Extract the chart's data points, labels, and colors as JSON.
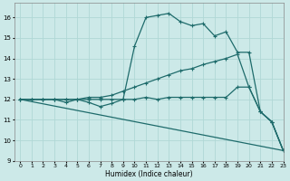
{
  "bg_color": "#cce9e8",
  "line_color": "#1e6b6b",
  "grid_color": "#b0d8d6",
  "xlabel": "Humidex (Indice chaleur)",
  "xlim": [
    -0.5,
    23
  ],
  "ylim": [
    9,
    16.7
  ],
  "yticks": [
    9,
    10,
    11,
    12,
    13,
    14,
    15,
    16
  ],
  "xticks": [
    0,
    1,
    2,
    3,
    4,
    5,
    6,
    7,
    8,
    9,
    10,
    11,
    12,
    13,
    14,
    15,
    16,
    17,
    18,
    19,
    20,
    21,
    22,
    23
  ],
  "line1_upper": {
    "x": [
      0,
      1,
      2,
      3,
      4,
      5,
      6,
      7,
      8,
      9,
      10,
      11,
      12,
      13,
      14,
      15,
      16,
      17,
      18,
      19,
      20,
      21,
      22,
      23
    ],
    "y": [
      12,
      12,
      12,
      12,
      12,
      12,
      12,
      12,
      12,
      12,
      14.6,
      16.0,
      16.1,
      16.2,
      15.8,
      15.6,
      15.7,
      15.1,
      15.3,
      14.3,
      14.3,
      11.4,
      10.9,
      9.5
    ]
  },
  "line2_mid": {
    "x": [
      0,
      1,
      2,
      3,
      4,
      5,
      6,
      7,
      8,
      9,
      10,
      11,
      12,
      13,
      14,
      15,
      16,
      17,
      18,
      19,
      20,
      21,
      22,
      23
    ],
    "y": [
      12,
      12,
      12,
      12,
      12,
      12,
      12.1,
      12.1,
      12.2,
      12.4,
      12.6,
      12.8,
      13.0,
      13.2,
      13.4,
      13.5,
      13.7,
      13.85,
      14.0,
      14.2,
      12.6,
      11.4,
      10.9,
      9.5
    ]
  },
  "line3_flat": {
    "x": [
      0,
      1,
      2,
      3,
      4,
      5,
      6,
      7,
      8,
      9,
      10,
      11,
      12,
      13,
      14,
      15,
      16,
      17,
      18,
      19,
      20,
      21,
      22,
      23
    ],
    "y": [
      12,
      12,
      12,
      12,
      11.85,
      12.0,
      11.85,
      11.65,
      11.8,
      12.0,
      12.0,
      12.1,
      12.0,
      12.1,
      12.1,
      12.1,
      12.1,
      12.1,
      12.1,
      12.6,
      12.6,
      11.4,
      10.9,
      9.5
    ]
  },
  "line4_diag": {
    "x": [
      0,
      23
    ],
    "y": [
      12,
      9.5
    ]
  }
}
